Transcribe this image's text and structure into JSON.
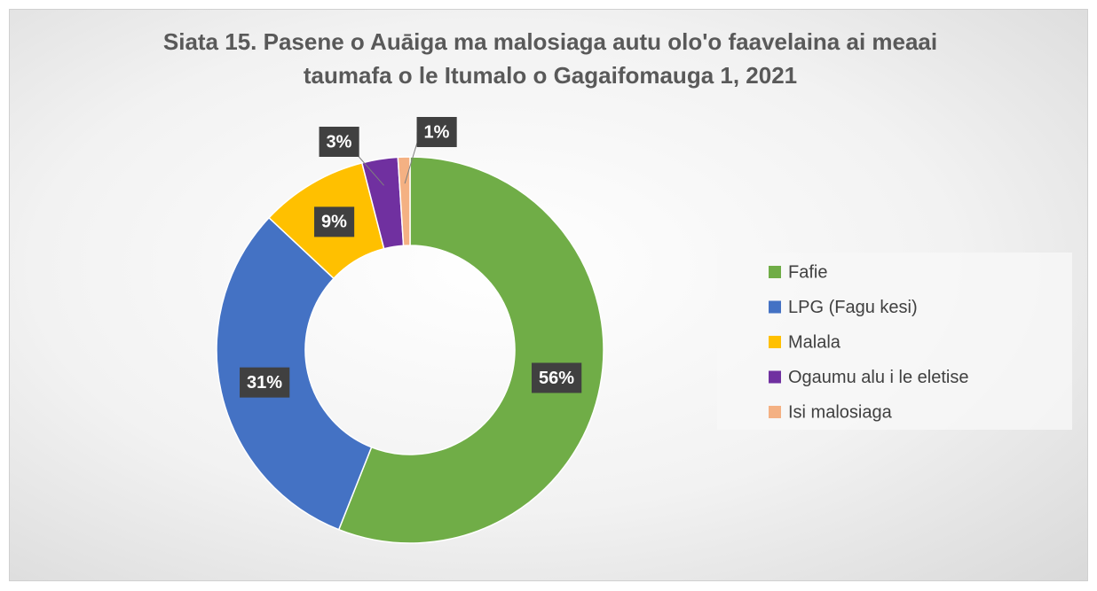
{
  "chart_data": {
    "type": "donut",
    "title": "Siata 15. Pasene o Auāiga ma malosiaga autu olo'o faavelaina ai meaai taumafa o le Itumalo o Gagaifomauga 1, 2021",
    "categories": [
      "Fafie",
      "LPG (Fagu kesi)",
      "Malala",
      "Ogaumu alu i le eletise",
      "Isi malosiaga"
    ],
    "values": [
      56,
      31,
      9,
      3,
      1
    ],
    "value_labels": [
      "56%",
      "31%",
      "9%",
      "3%",
      "1%"
    ],
    "colors": [
      "#70ad47",
      "#4472c4",
      "#ffc000",
      "#7030a0",
      "#f4b183"
    ],
    "legend": "right"
  }
}
